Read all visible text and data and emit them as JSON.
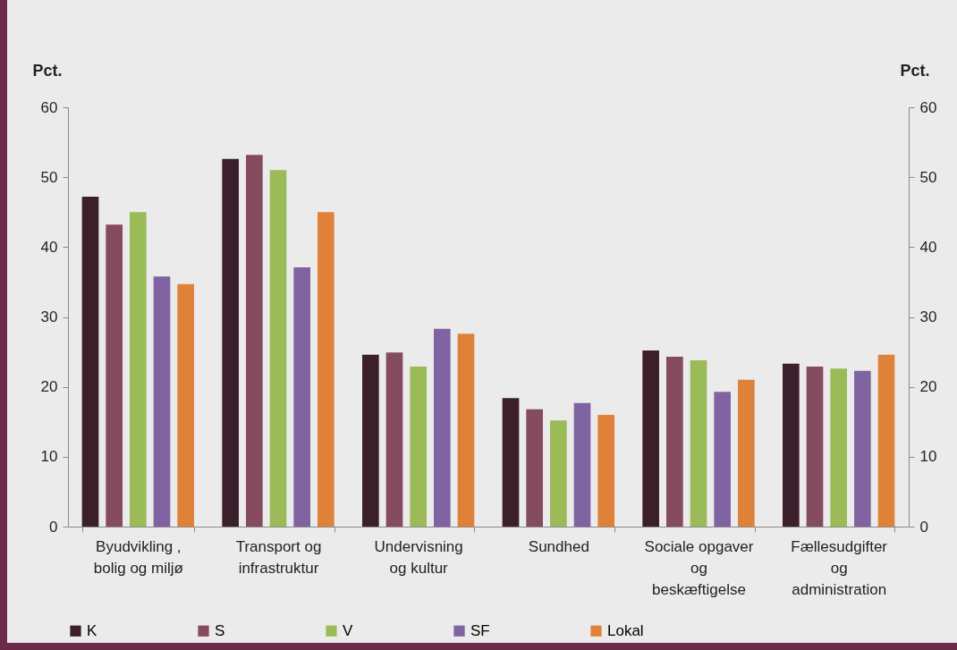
{
  "chart_data": {
    "type": "bar",
    "categories": [
      "Byudvikling ,\nbolig og miljø",
      "Transport og\ninfrastruktur",
      "Undervisning\nog kultur",
      "Sundhed",
      "Sociale opgaver\nog\nbeskæftigelse",
      "Fællesudgifter\nog\nadministration"
    ],
    "ylabel": "Pct.",
    "y2label": "Pct.",
    "ylim": [
      0,
      60
    ],
    "yticks": [
      0,
      10,
      20,
      30,
      40,
      50,
      60
    ],
    "y2lim": [
      0,
      60
    ],
    "y2ticks": [
      0,
      10,
      20,
      30,
      40,
      50,
      60
    ],
    "series": [
      {
        "name": "K",
        "color": "#3b1f2b",
        "values": [
          47.2,
          52.6,
          24.6,
          18.4,
          25.2,
          23.3
        ]
      },
      {
        "name": "S",
        "color": "#854b5f",
        "values": [
          43.2,
          53.2,
          24.9,
          16.8,
          24.3,
          22.9
        ]
      },
      {
        "name": "V",
        "color": "#9bbb59",
        "values": [
          45.0,
          51.0,
          22.9,
          15.2,
          23.8,
          22.6
        ]
      },
      {
        "name": "SF",
        "color": "#8064a2",
        "values": [
          35.8,
          37.1,
          28.3,
          17.7,
          19.3,
          22.3
        ]
      },
      {
        "name": "Lokal",
        "color": "#e0813a",
        "values": [
          34.7,
          45.0,
          27.6,
          16.0,
          21.0,
          24.6
        ]
      }
    ],
    "legend": "bottom",
    "grid": false
  }
}
